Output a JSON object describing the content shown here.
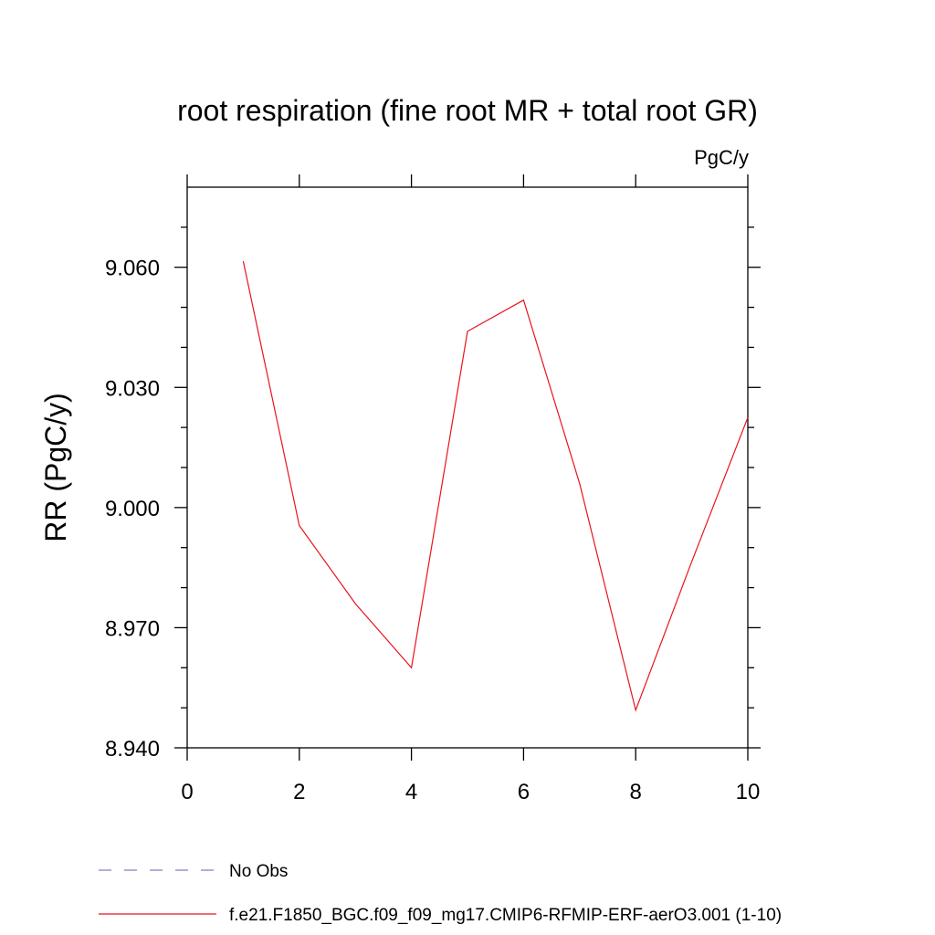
{
  "chart_data": {
    "type": "line",
    "title": "root respiration (fine root MR + total root GR)",
    "units_label": "PgC/y",
    "xlabel": "",
    "ylabel": "RR  (PgC/y)",
    "xlim": [
      0,
      10
    ],
    "ylim": [
      8.94,
      9.08
    ],
    "x_ticks": [
      0,
      2,
      4,
      6,
      8,
      10
    ],
    "x_tick_labels": [
      "0",
      "2",
      "4",
      "6",
      "8",
      "10"
    ],
    "y_ticks": [
      8.94,
      8.97,
      9.0,
      9.03,
      9.06
    ],
    "y_tick_labels": [
      "8.940",
      "8.970",
      "9.000",
      "9.030",
      "9.060"
    ],
    "grid": false,
    "legend_position": "bottom-left",
    "series": [
      {
        "name": "No Obs",
        "style": "dashed",
        "color": "#8080c0",
        "x": [],
        "y": []
      },
      {
        "name": "f.e21.F1850_BGC.f09_f09_mg17.CMIP6-RFMIP-ERF-aerO3.001 (1-10)",
        "style": "solid",
        "color": "#e8141c",
        "x": [
          1,
          2,
          3,
          4,
          5,
          6,
          7,
          8,
          9,
          10
        ],
        "y": [
          9.0615,
          8.9955,
          8.976,
          8.96,
          9.044,
          9.0518,
          9.006,
          8.9494,
          8.9865,
          9.0225
        ]
      }
    ]
  }
}
